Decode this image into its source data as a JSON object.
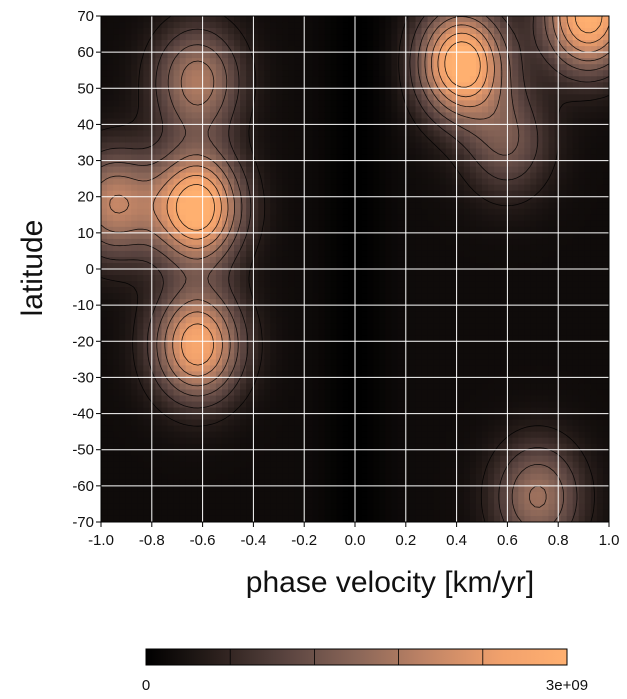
{
  "chart_data": {
    "type": "heatmap",
    "xlabel": "phase velocity [km/yr]",
    "ylabel": "latitude",
    "xlim": [
      -1.0,
      1.0
    ],
    "ylim": [
      -70,
      70
    ],
    "x_ticks": [
      "-1.0",
      "-0.8",
      "-0.6",
      "-0.4",
      "-0.2",
      "0.0",
      "0.2",
      "0.4",
      "0.6",
      "0.8",
      "1.0"
    ],
    "y_ticks": [
      "70",
      "60",
      "50",
      "40",
      "30",
      "20",
      "10",
      "0",
      "-10",
      "-20",
      "-30",
      "-40",
      "-50",
      "-60",
      "-70"
    ],
    "grid": true,
    "colormap": [
      "#000000",
      "#2a1f1c",
      "#5a4440",
      "#8a6658",
      "#c08466",
      "#f0a06c",
      "#ffb070"
    ],
    "contour_color": "#000000",
    "gridline_color": "#ffffff",
    "colorbar": {
      "min": 0,
      "max": 3000000000,
      "min_label": "0",
      "max_label": "3e+09",
      "ticks": [
        0.2,
        0.4,
        0.6,
        0.8
      ]
    },
    "peaks": [
      {
        "x": -0.62,
        "y": 17,
        "amp": 1.0
      },
      {
        "x": -0.62,
        "y": -21,
        "amp": 0.85
      },
      {
        "x": -0.62,
        "y": 52,
        "amp": 0.55
      },
      {
        "x": 0.42,
        "y": 57,
        "amp": 1.0
      },
      {
        "x": 0.92,
        "y": 70,
        "amp": 0.95
      },
      {
        "x": 0.72,
        "y": -63,
        "amp": 0.5
      },
      {
        "x": -0.95,
        "y": 18,
        "amp": 0.6
      },
      {
        "x": 0.6,
        "y": 35,
        "amp": 0.35
      }
    ]
  }
}
